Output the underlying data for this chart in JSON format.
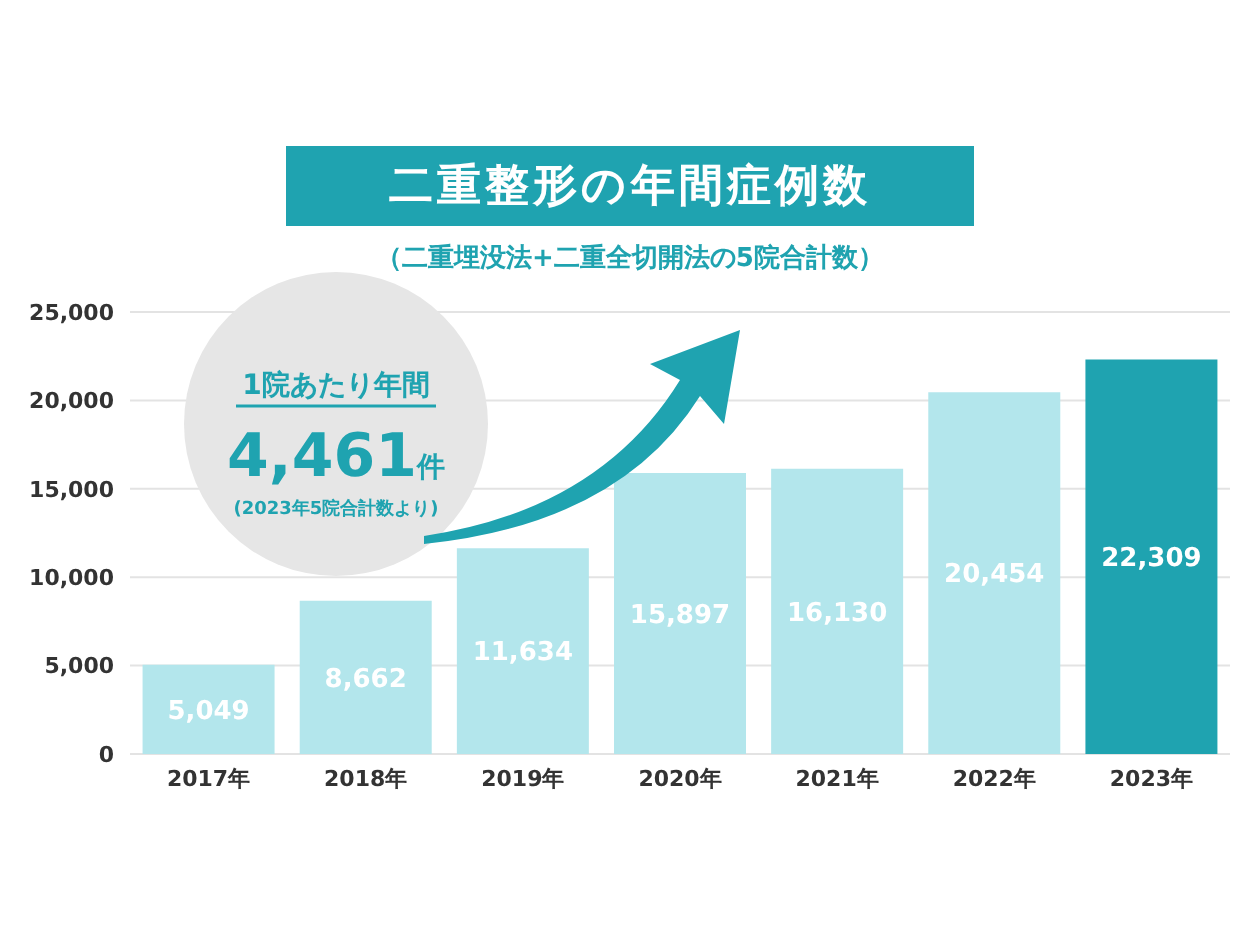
{
  "chart_data": {
    "type": "bar",
    "title": "二重整形の年間症例数",
    "subtitle": "（二重埋没法+二重全切開法の5院合計数）",
    "categories": [
      "2017年",
      "2018年",
      "2019年",
      "2020年",
      "2021年",
      "2022年",
      "2023年"
    ],
    "values": [
      5049,
      8662,
      11634,
      15897,
      16130,
      20454,
      22309
    ],
    "colors": [
      "#b3e6ec",
      "#b3e6ec",
      "#b3e6ec",
      "#b3e6ec",
      "#b3e6ec",
      "#b3e6ec",
      "#1fa3b0"
    ],
    "ylim": [
      0,
      25000
    ],
    "yticks": [
      {
        "value": 0,
        "label": "0"
      },
      {
        "value": 5000,
        "label": "5,000"
      },
      {
        "value": 10000,
        "label": "10,000"
      },
      {
        "value": 15000,
        "label": "15,000"
      },
      {
        "value": 20000,
        "label": "20,000"
      },
      {
        "value": 25000,
        "label": "25,000"
      }
    ],
    "grid": "y",
    "value_labels": [
      "5,049",
      "8,662",
      "11,634",
      "15,897",
      "16,130",
      "20,454",
      "22,309"
    ],
    "annotations": [
      "1院あたり年間",
      "4,461件",
      "(2023年5院合計数より)"
    ]
  }
}
